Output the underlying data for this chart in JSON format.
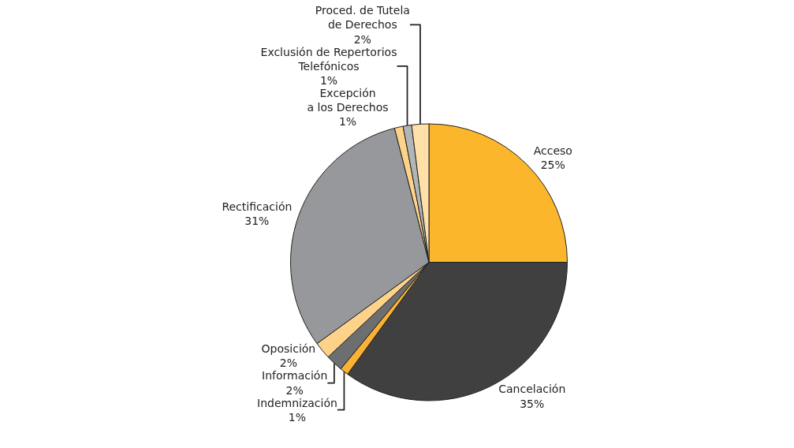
{
  "chart_data": {
    "type": "pie",
    "categories": [
      "Acceso",
      "Cancelación",
      "Indemnización",
      "Información",
      "Oposición",
      "Rectificación",
      "Excepción\na los Derechos",
      "Exclusión de Repertorios\nTelefónicos",
      "Proced. de Tutela\nde Derechos"
    ],
    "values": [
      25,
      35,
      1,
      2,
      2,
      31,
      1,
      1,
      2
    ],
    "value_labels": [
      "25%",
      "35%",
      "1%",
      "2%",
      "2%",
      "31%",
      "1%",
      "1%",
      "2%"
    ],
    "colors": [
      "#fbb62b",
      "#404040",
      "#f9b233",
      "#6d6e70",
      "#fdd38a",
      "#97989b",
      "#fdd38a",
      "#b3b4b6",
      "#fee0a8"
    ],
    "legend": false
  }
}
